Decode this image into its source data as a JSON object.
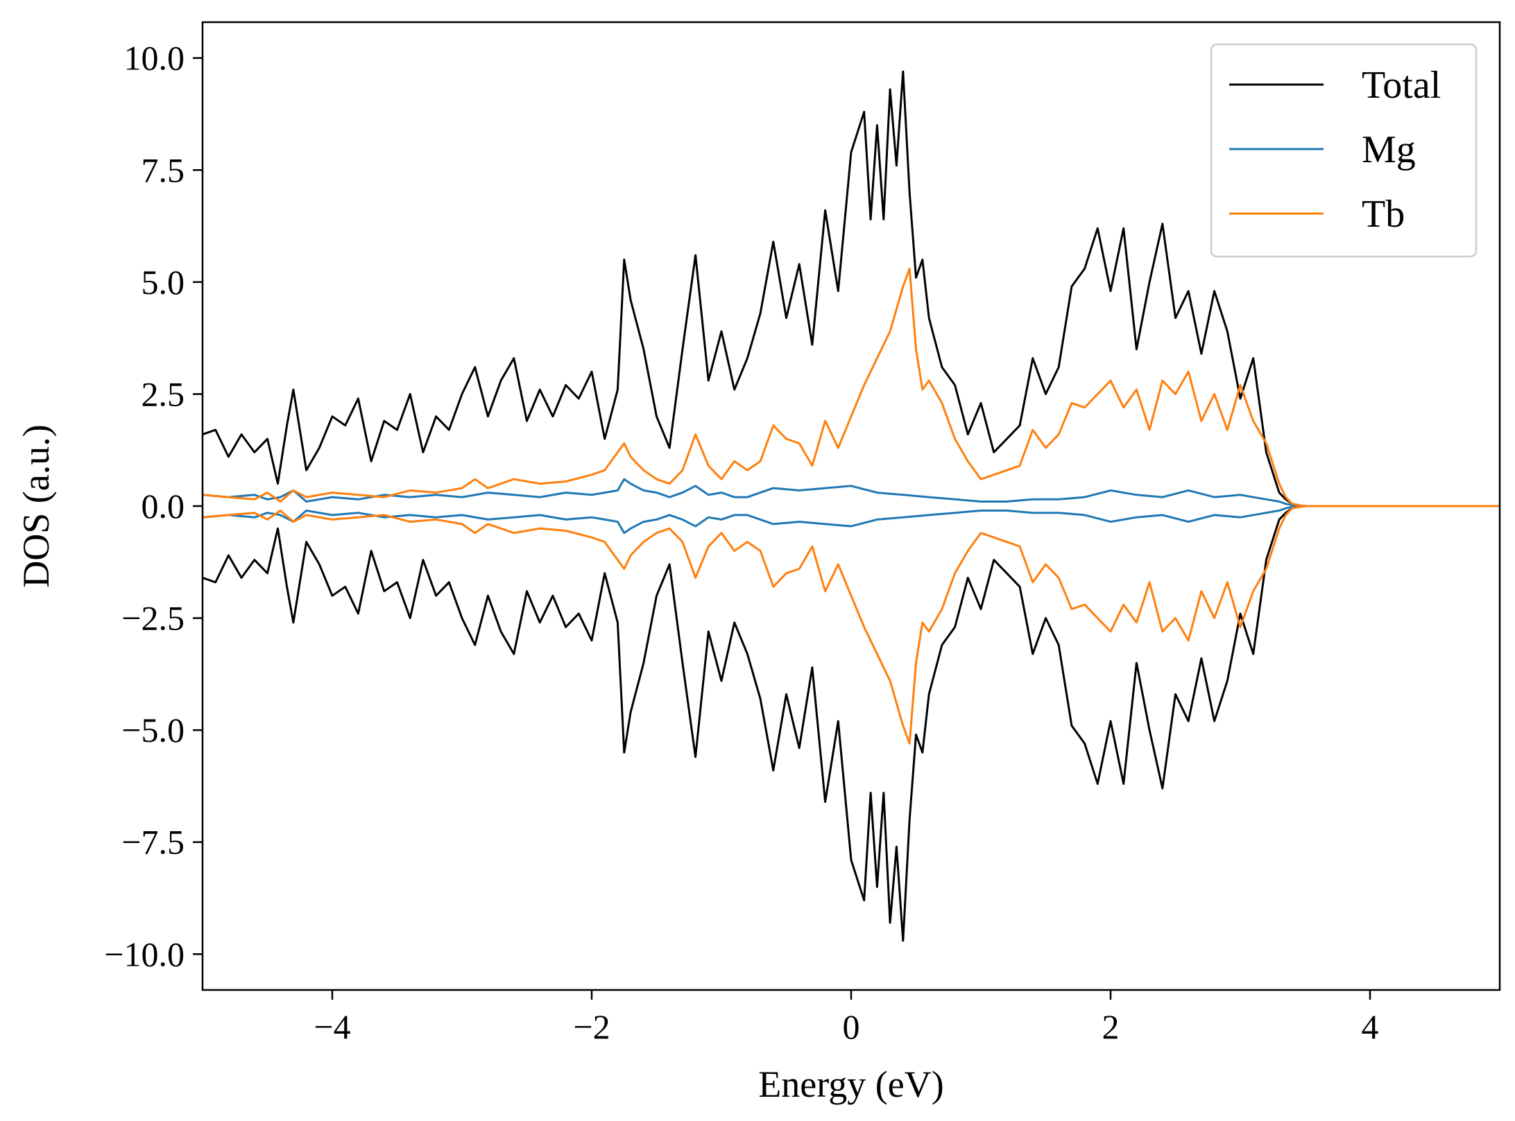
{
  "chart_data": {
    "type": "line",
    "title": "",
    "xlabel": "Energy (eV)",
    "ylabel": "DOS (a.u.)",
    "xlim": [
      -5,
      5
    ],
    "ylim": [
      -10.8,
      10.8
    ],
    "xticks": [
      -4,
      -2,
      0,
      2,
      4
    ],
    "xtick_labels": [
      "−4",
      "−2",
      "0",
      "2",
      "4"
    ],
    "yticks": [
      -10,
      -7.5,
      -5,
      -2.5,
      0,
      2.5,
      5,
      7.5,
      10
    ],
    "ytick_labels": [
      "−10.0",
      "−7.5",
      "−5.0",
      "−2.5",
      "0.0",
      "2.5",
      "5.0",
      "7.5",
      "10.0"
    ],
    "grid": false,
    "legend_position": "top-right",
    "spin_mirrored": true,
    "series": [
      {
        "name": "Total",
        "color": "#000000",
        "x": [
          -5.0,
          -4.9,
          -4.8,
          -4.7,
          -4.6,
          -4.5,
          -4.42,
          -4.35,
          -4.3,
          -4.2,
          -4.1,
          -4.0,
          -3.9,
          -3.8,
          -3.7,
          -3.6,
          -3.5,
          -3.4,
          -3.3,
          -3.2,
          -3.1,
          -3.0,
          -2.9,
          -2.8,
          -2.7,
          -2.6,
          -2.5,
          -2.4,
          -2.3,
          -2.2,
          -2.1,
          -2.0,
          -1.9,
          -1.8,
          -1.75,
          -1.7,
          -1.6,
          -1.5,
          -1.4,
          -1.3,
          -1.2,
          -1.1,
          -1.0,
          -0.9,
          -0.8,
          -0.7,
          -0.6,
          -0.5,
          -0.4,
          -0.3,
          -0.2,
          -0.1,
          0.0,
          0.1,
          0.15,
          0.2,
          0.25,
          0.3,
          0.35,
          0.4,
          0.45,
          0.5,
          0.55,
          0.6,
          0.7,
          0.8,
          0.9,
          1.0,
          1.1,
          1.2,
          1.3,
          1.4,
          1.5,
          1.6,
          1.7,
          1.8,
          1.9,
          2.0,
          2.1,
          2.2,
          2.3,
          2.4,
          2.5,
          2.6,
          2.7,
          2.8,
          2.9,
          3.0,
          3.1,
          3.2,
          3.3,
          3.35,
          3.4,
          3.45,
          3.5,
          3.6,
          3.8,
          4.0,
          4.5,
          5.0
        ],
        "values": [
          1.6,
          1.7,
          1.1,
          1.6,
          1.2,
          1.5,
          0.5,
          1.8,
          2.6,
          0.8,
          1.3,
          2.0,
          1.8,
          2.4,
          1.0,
          1.9,
          1.7,
          2.5,
          1.2,
          2.0,
          1.7,
          2.5,
          3.1,
          2.0,
          2.8,
          3.3,
          1.9,
          2.6,
          2.0,
          2.7,
          2.4,
          3.0,
          1.5,
          2.6,
          5.5,
          4.6,
          3.5,
          2.0,
          1.3,
          3.5,
          5.6,
          2.8,
          3.9,
          2.6,
          3.3,
          4.3,
          5.9,
          4.2,
          5.4,
          3.6,
          6.6,
          4.8,
          7.9,
          8.8,
          6.4,
          8.5,
          6.4,
          9.3,
          7.6,
          9.7,
          7.0,
          5.1,
          5.5,
          4.2,
          3.1,
          2.7,
          1.6,
          2.3,
          1.2,
          1.5,
          1.8,
          3.3,
          2.5,
          3.1,
          4.9,
          5.3,
          6.2,
          4.8,
          6.2,
          3.5,
          5.0,
          6.3,
          4.2,
          4.8,
          3.4,
          4.8,
          3.9,
          2.4,
          3.3,
          1.2,
          0.3,
          0.15,
          0.05,
          0.02,
          0.0,
          0.0,
          0.0,
          0.0,
          0.0,
          0.0
        ]
      },
      {
        "name": "Mg",
        "color": "#1f77b4",
        "x": [
          -5.0,
          -4.8,
          -4.6,
          -4.5,
          -4.4,
          -4.3,
          -4.2,
          -4.0,
          -3.8,
          -3.6,
          -3.4,
          -3.2,
          -3.0,
          -2.8,
          -2.6,
          -2.4,
          -2.2,
          -2.0,
          -1.9,
          -1.8,
          -1.75,
          -1.7,
          -1.6,
          -1.5,
          -1.4,
          -1.3,
          -1.2,
          -1.1,
          -1.0,
          -0.9,
          -0.8,
          -0.6,
          -0.4,
          -0.2,
          0.0,
          0.2,
          0.4,
          0.6,
          0.8,
          1.0,
          1.2,
          1.4,
          1.6,
          1.8,
          2.0,
          2.2,
          2.4,
          2.6,
          2.8,
          3.0,
          3.2,
          3.3,
          3.35,
          3.4,
          3.5,
          3.6,
          4.0,
          5.0
        ],
        "values": [
          0.25,
          0.2,
          0.25,
          0.15,
          0.2,
          0.35,
          0.1,
          0.2,
          0.15,
          0.25,
          0.2,
          0.25,
          0.2,
          0.3,
          0.25,
          0.2,
          0.3,
          0.25,
          0.3,
          0.35,
          0.6,
          0.5,
          0.35,
          0.3,
          0.2,
          0.3,
          0.45,
          0.25,
          0.3,
          0.2,
          0.2,
          0.4,
          0.35,
          0.4,
          0.45,
          0.3,
          0.25,
          0.2,
          0.15,
          0.1,
          0.1,
          0.15,
          0.15,
          0.2,
          0.35,
          0.25,
          0.2,
          0.35,
          0.2,
          0.25,
          0.15,
          0.1,
          0.05,
          0.02,
          0.0,
          0.0,
          0.0,
          0.0
        ]
      },
      {
        "name": "Tb",
        "color": "#ff7f0e",
        "x": [
          -5.0,
          -4.8,
          -4.6,
          -4.5,
          -4.4,
          -4.3,
          -4.2,
          -4.0,
          -3.8,
          -3.6,
          -3.4,
          -3.2,
          -3.0,
          -2.9,
          -2.8,
          -2.6,
          -2.4,
          -2.2,
          -2.0,
          -1.9,
          -1.8,
          -1.75,
          -1.7,
          -1.6,
          -1.5,
          -1.4,
          -1.3,
          -1.2,
          -1.1,
          -1.0,
          -0.9,
          -0.8,
          -0.7,
          -0.6,
          -0.5,
          -0.4,
          -0.3,
          -0.2,
          -0.1,
          0.0,
          0.1,
          0.2,
          0.3,
          0.4,
          0.45,
          0.5,
          0.55,
          0.6,
          0.7,
          0.8,
          0.9,
          1.0,
          1.1,
          1.2,
          1.3,
          1.4,
          1.5,
          1.6,
          1.7,
          1.8,
          1.9,
          2.0,
          2.1,
          2.2,
          2.3,
          2.4,
          2.5,
          2.6,
          2.7,
          2.8,
          2.9,
          3.0,
          3.1,
          3.2,
          3.3,
          3.35,
          3.4,
          3.5,
          3.6,
          4.0,
          5.0
        ],
        "values": [
          0.25,
          0.2,
          0.15,
          0.3,
          0.1,
          0.35,
          0.2,
          0.3,
          0.25,
          0.2,
          0.35,
          0.3,
          0.4,
          0.6,
          0.4,
          0.6,
          0.5,
          0.55,
          0.7,
          0.8,
          1.2,
          1.4,
          1.1,
          0.8,
          0.6,
          0.5,
          0.8,
          1.6,
          0.9,
          0.6,
          1.0,
          0.8,
          1.0,
          1.8,
          1.5,
          1.4,
          0.9,
          1.9,
          1.3,
          2.0,
          2.7,
          3.3,
          3.9,
          4.9,
          5.3,
          3.5,
          2.6,
          2.8,
          2.3,
          1.5,
          1.0,
          0.6,
          0.7,
          0.8,
          0.9,
          1.7,
          1.3,
          1.6,
          2.3,
          2.2,
          2.5,
          2.8,
          2.2,
          2.6,
          1.7,
          2.8,
          2.5,
          3.0,
          1.9,
          2.5,
          1.7,
          2.7,
          1.9,
          1.4,
          0.5,
          0.2,
          0.05,
          0.0,
          0.0,
          0.0,
          0.0
        ]
      }
    ]
  }
}
